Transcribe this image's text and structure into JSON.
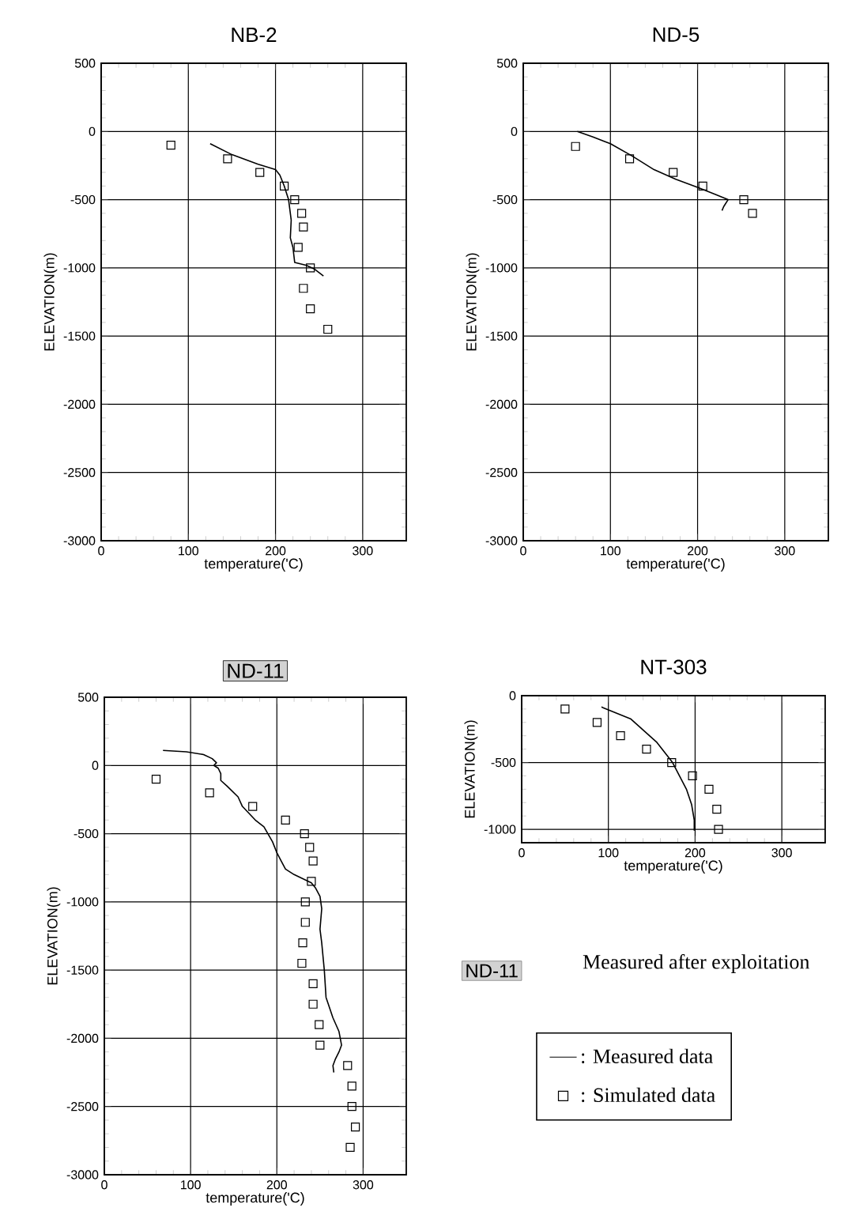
{
  "chart_data": [
    {
      "type": "line",
      "title": "NB-2",
      "xlabel": "temperature('C)",
      "ylabel": "ELEVATION(m)",
      "xlim": [
        0,
        350
      ],
      "ylim": [
        -3000,
        500
      ],
      "xticks": [
        0,
        100,
        200,
        300
      ],
      "yticks": [
        -3000,
        -2500,
        -2000,
        -1500,
        -1000,
        -500,
        0,
        500
      ],
      "grid": true,
      "series": [
        {
          "type": "line",
          "color": "#000000",
          "x": [
            125,
            150,
            180,
            200,
            205,
            210,
            215,
            218,
            217,
            220,
            222,
            235,
            245,
            255
          ],
          "values": [
            -90,
            -170,
            -240,
            -280,
            -320,
            -400,
            -500,
            -650,
            -780,
            -850,
            -960,
            -980,
            -1010,
            -1060
          ]
        },
        {
          "type": "scatter",
          "marker": "square",
          "color": "#000000",
          "x": [
            80,
            145,
            182,
            210,
            222,
            230,
            232,
            226,
            240,
            232,
            240,
            260
          ],
          "values": [
            -100,
            -200,
            -300,
            -400,
            -500,
            -600,
            -700,
            -850,
            -1000,
            -1150,
            -1300,
            -1450
          ]
        }
      ]
    },
    {
      "type": "line",
      "title": "ND-5",
      "xlabel": "temperature('C)",
      "ylabel": "ELEVATION(m)",
      "xlim": [
        0,
        350
      ],
      "ylim": [
        -3000,
        500
      ],
      "xticks": [
        0,
        100,
        200,
        300
      ],
      "yticks": [
        -3000,
        -2500,
        -2000,
        -1500,
        -1000,
        -500,
        0,
        500
      ],
      "grid": true,
      "series": [
        {
          "type": "line",
          "color": "#000000",
          "x": [
            62,
            80,
            100,
            125,
            150,
            175,
            200,
            220,
            235,
            230,
            228
          ],
          "values": [
            0,
            -40,
            -90,
            -180,
            -280,
            -350,
            -410,
            -460,
            -500,
            -550,
            -580
          ]
        },
        {
          "type": "scatter",
          "marker": "square",
          "color": "#000000",
          "x": [
            60,
            122,
            172,
            206,
            253,
            263
          ],
          "values": [
            -110,
            -200,
            -300,
            -400,
            -500,
            -600
          ]
        }
      ]
    },
    {
      "type": "line",
      "title": "ND-11",
      "xlabel": "temperature('C)",
      "ylabel": "ELEVATION(m)",
      "xlim": [
        0,
        350
      ],
      "ylim": [
        -3000,
        500
      ],
      "xticks": [
        0,
        100,
        200,
        300
      ],
      "yticks": [
        -3000,
        -2500,
        -2000,
        -1500,
        -1000,
        -500,
        0,
        500
      ],
      "grid": true,
      "series": [
        {
          "type": "line",
          "color": "#000000",
          "x": [
            68,
            95,
            115,
            125,
            130,
            127,
            132,
            135,
            135,
            142,
            155,
            160,
            175,
            185,
            195,
            200,
            205,
            210,
            220,
            240,
            245,
            250,
            252,
            250,
            252,
            255,
            257,
            265,
            272,
            275,
            272,
            268,
            265,
            266
          ],
          "values": [
            110,
            100,
            80,
            50,
            20,
            0,
            -20,
            -60,
            -110,
            -150,
            -230,
            -300,
            -400,
            -450,
            -560,
            -640,
            -700,
            -760,
            -800,
            -860,
            -900,
            -960,
            -1050,
            -1200,
            -1300,
            -1500,
            -1700,
            -1850,
            -1950,
            -2050,
            -2100,
            -2150,
            -2200,
            -2250
          ]
        },
        {
          "type": "scatter",
          "marker": "square",
          "color": "#000000",
          "x": [
            60,
            122,
            172,
            210,
            232,
            238,
            242,
            240,
            233,
            233,
            230,
            229,
            242,
            242,
            249,
            250,
            282,
            287,
            287,
            291,
            285
          ],
          "values": [
            -100,
            -200,
            -300,
            -400,
            -500,
            -600,
            -700,
            -850,
            -1000,
            -1150,
            -1300,
            -1450,
            -1600,
            -1750,
            -1900,
            -2050,
            -2200,
            -2350,
            -2500,
            -2650,
            -2800
          ]
        }
      ]
    },
    {
      "type": "line",
      "title": "NT-303",
      "xlabel": "temperature('C)",
      "ylabel": "ELEVATION(m)",
      "xlim": [
        0,
        350
      ],
      "ylim": [
        -1100,
        0
      ],
      "xticks": [
        0,
        100,
        200,
        300
      ],
      "yticks": [
        -1000,
        -500,
        0
      ],
      "grid": true,
      "legend": "bottom",
      "series": [
        {
          "type": "line",
          "name": ": Measured data",
          "color": "#000000",
          "x": [
            92,
            126,
            156,
            174,
            190,
            196,
            199,
            199
          ],
          "values": [
            -85,
            -175,
            -350,
            -500,
            -700,
            -815,
            -930,
            -1010
          ]
        },
        {
          "type": "scatter",
          "name": ": Simulated data",
          "marker": "square",
          "color": "#000000",
          "x": [
            50,
            87,
            114,
            144,
            173,
            197,
            216,
            225,
            227
          ],
          "values": [
            -100,
            -200,
            -300,
            -400,
            -500,
            -600,
            -700,
            -850,
            -1000
          ]
        }
      ]
    },
    {
      "type": "other",
      "annotations": [
        "ND-11",
        "Measured after exploitation"
      ]
    }
  ]
}
